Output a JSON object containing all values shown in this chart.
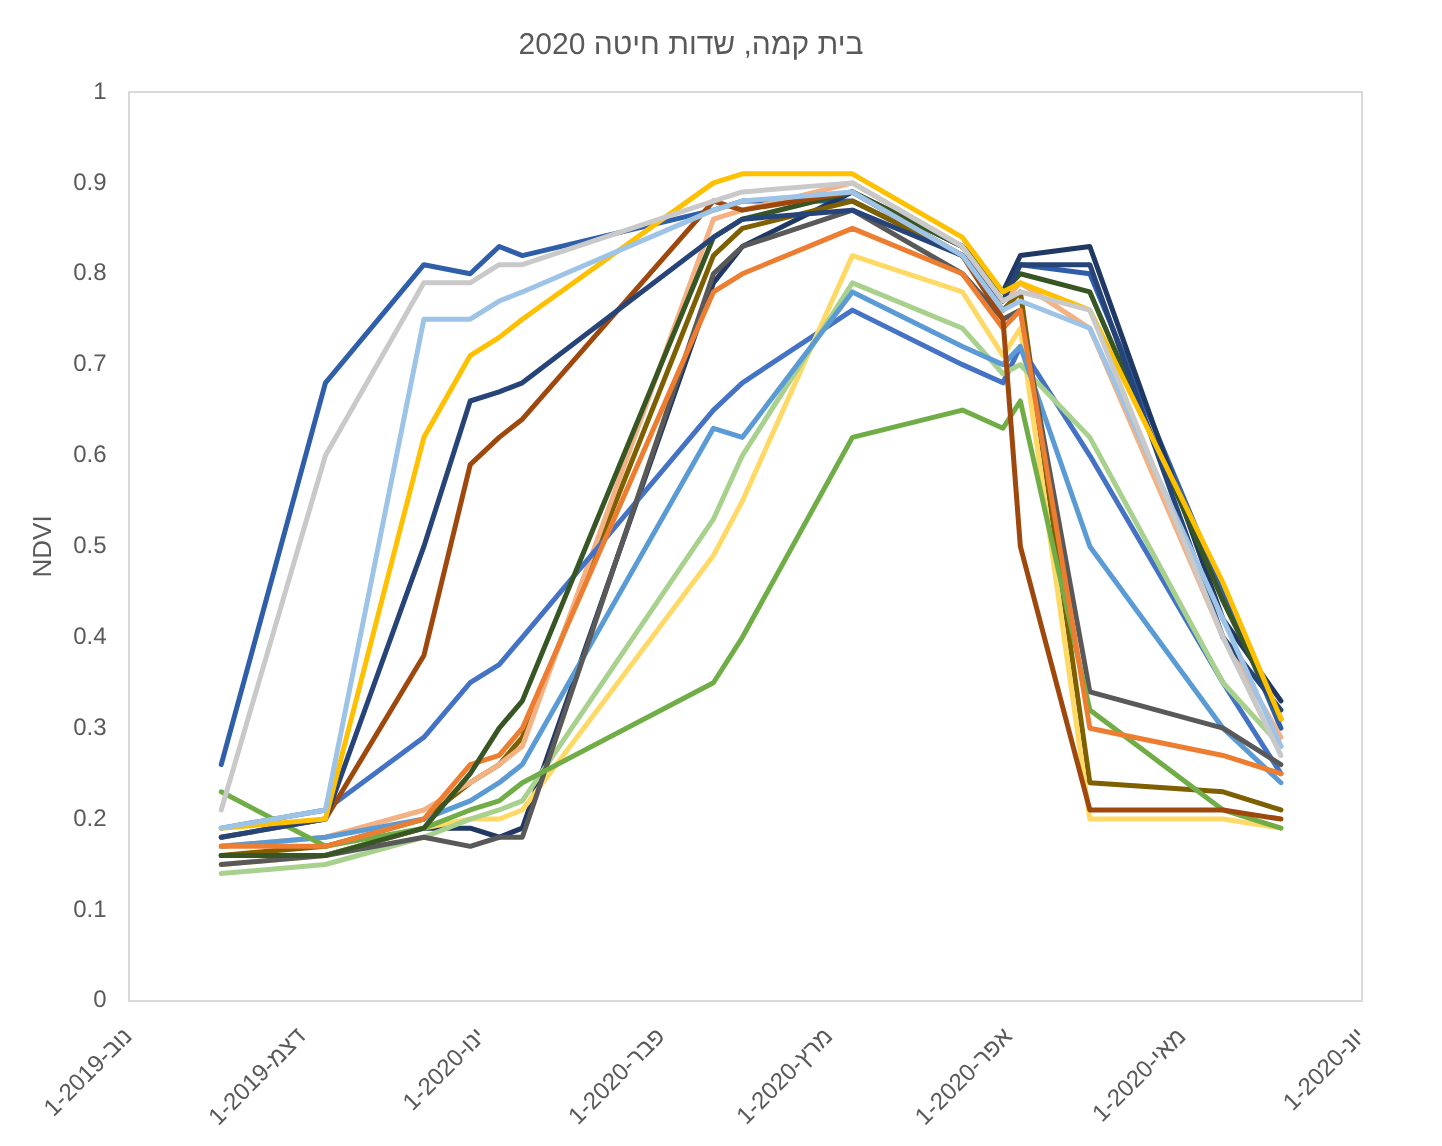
{
  "chart_data": {
    "type": "line",
    "title": "בית קמה, שדות חיטה 2020",
    "ylabel": "NDVI",
    "x": [
      "2019-11-17",
      "2019-12-05",
      "2019-12-22",
      "2019-12-30",
      "2020-01-04",
      "2020-01-08",
      "2020-02-10",
      "2020-02-15",
      "2020-03-05",
      "2020-03-24",
      "2020-03-31",
      "2020-04-03",
      "2020-04-15",
      "2020-05-08",
      "2020-05-18"
    ],
    "xlim": [
      "2019-11-01",
      "2020-06-01"
    ],
    "xticks": [
      {
        "value": "2019-11-01",
        "label": "1-נוב-2019"
      },
      {
        "value": "2019-12-01",
        "label": "1-דצמ-2019"
      },
      {
        "value": "2020-01-01",
        "label": "1-ינו-2020"
      },
      {
        "value": "2020-02-01",
        "label": "1-פבר-2020"
      },
      {
        "value": "2020-03-01",
        "label": "1-מרץ-2020"
      },
      {
        "value": "2020-04-01",
        "label": "1-אפר-2020"
      },
      {
        "value": "2020-05-01",
        "label": "1-מאי-2020"
      },
      {
        "value": "2020-06-01",
        "label": "1-יונ-2020"
      }
    ],
    "ylim": [
      0,
      1
    ],
    "yticks": [
      0,
      0.1,
      0.2,
      0.3,
      0.4,
      0.5,
      0.6,
      0.7,
      0.8,
      0.9,
      1
    ],
    "grid": false,
    "legend": false,
    "marker": "none",
    "line_style": "solid",
    "series": [
      {
        "color": "#c9c9c9",
        "values": [
          0.21,
          0.6,
          0.79,
          0.79,
          0.81,
          0.81,
          0.88,
          0.89,
          0.9,
          0.83,
          0.77,
          0.78,
          0.76,
          0.4,
          0.27
        ]
      },
      {
        "color": "#9dc3e6",
        "values": [
          0.19,
          0.21,
          0.75,
          0.75,
          0.77,
          0.78,
          0.87,
          0.88,
          0.89,
          0.82,
          0.76,
          0.77,
          0.74,
          0.42,
          0.28
        ]
      },
      {
        "color": "#ffc000",
        "values": [
          0.19,
          0.2,
          0.62,
          0.71,
          0.73,
          0.75,
          0.9,
          0.91,
          0.91,
          0.84,
          0.78,
          0.79,
          0.76,
          0.46,
          0.31
        ]
      },
      {
        "color": "#264478",
        "values": [
          0.18,
          0.2,
          0.5,
          0.66,
          0.67,
          0.68,
          0.84,
          0.86,
          0.87,
          0.82,
          0.77,
          0.81,
          0.81,
          0.4,
          0.32
        ]
      },
      {
        "color": "#9e480e",
        "values": [
          0.18,
          0.2,
          0.38,
          0.59,
          0.62,
          0.64,
          0.88,
          0.87,
          0.89,
          0.82,
          0.75,
          0.5,
          0.21,
          0.21,
          0.2
        ]
      },
      {
        "color": "#375623",
        "values": [
          0.16,
          0.16,
          0.19,
          0.25,
          0.3,
          0.33,
          0.84,
          0.86,
          0.89,
          0.83,
          0.78,
          0.8,
          0.78,
          0.44,
          0.31
        ]
      },
      {
        "color": "#ed7d31",
        "values": [
          0.17,
          0.17,
          0.2,
          0.26,
          0.27,
          0.3,
          0.78,
          0.8,
          0.85,
          0.8,
          0.74,
          0.76,
          0.3,
          0.27,
          0.25
        ]
      },
      {
        "color": "#70ad47",
        "values": [
          0.23,
          0.17,
          0.19,
          0.21,
          0.22,
          0.24,
          0.35,
          0.4,
          0.62,
          0.65,
          0.63,
          0.66,
          0.32,
          0.21,
          0.19
        ]
      },
      {
        "color": "#595959",
        "values": [
          0.15,
          0.16,
          0.18,
          0.17,
          0.18,
          0.18,
          0.8,
          0.83,
          0.87,
          0.8,
          0.75,
          0.76,
          0.34,
          0.3,
          0.26
        ]
      },
      {
        "color": "#5b9bd5",
        "values": [
          0.17,
          0.18,
          0.2,
          0.22,
          0.24,
          0.26,
          0.63,
          0.62,
          0.78,
          0.72,
          0.7,
          0.72,
          0.5,
          0.3,
          0.24
        ]
      },
      {
        "color": "#a9d18e",
        "values": [
          0.14,
          0.15,
          0.18,
          0.2,
          0.21,
          0.22,
          0.53,
          0.6,
          0.79,
          0.74,
          0.69,
          0.7,
          0.62,
          0.35,
          0.28
        ]
      },
      {
        "color": "#ffd966",
        "values": [
          0.15,
          0.16,
          0.19,
          0.2,
          0.2,
          0.21,
          0.49,
          0.55,
          0.82,
          0.78,
          0.71,
          0.74,
          0.2,
          0.2,
          0.19
        ]
      },
      {
        "color": "#4472c4",
        "values": [
          0.19,
          0.21,
          0.29,
          0.35,
          0.37,
          0.4,
          0.65,
          0.68,
          0.76,
          0.7,
          0.68,
          0.72,
          0.6,
          0.35,
          0.25
        ]
      },
      {
        "color": "#f4b183",
        "values": [
          0.17,
          0.18,
          0.21,
          0.24,
          0.26,
          0.28,
          0.86,
          0.87,
          0.9,
          0.83,
          0.77,
          0.79,
          0.74,
          0.4,
          0.29
        ]
      },
      {
        "color": "#7f6000",
        "values": [
          0.16,
          0.17,
          0.2,
          0.24,
          0.26,
          0.29,
          0.82,
          0.85,
          0.88,
          0.82,
          0.76,
          0.78,
          0.24,
          0.23,
          0.21
        ]
      },
      {
        "color": "#1f3864",
        "values": [
          0.16,
          0.16,
          0.19,
          0.19,
          0.18,
          0.19,
          0.79,
          0.83,
          0.89,
          0.83,
          0.78,
          0.82,
          0.83,
          0.42,
          0.33
        ]
      },
      {
        "color": "#2e5fa8",
        "values": [
          0.26,
          0.68,
          0.81,
          0.8,
          0.83,
          0.82,
          0.87,
          0.88,
          0.88,
          0.82,
          0.78,
          0.81,
          0.8,
          0.45,
          0.3
        ]
      }
    ]
  }
}
